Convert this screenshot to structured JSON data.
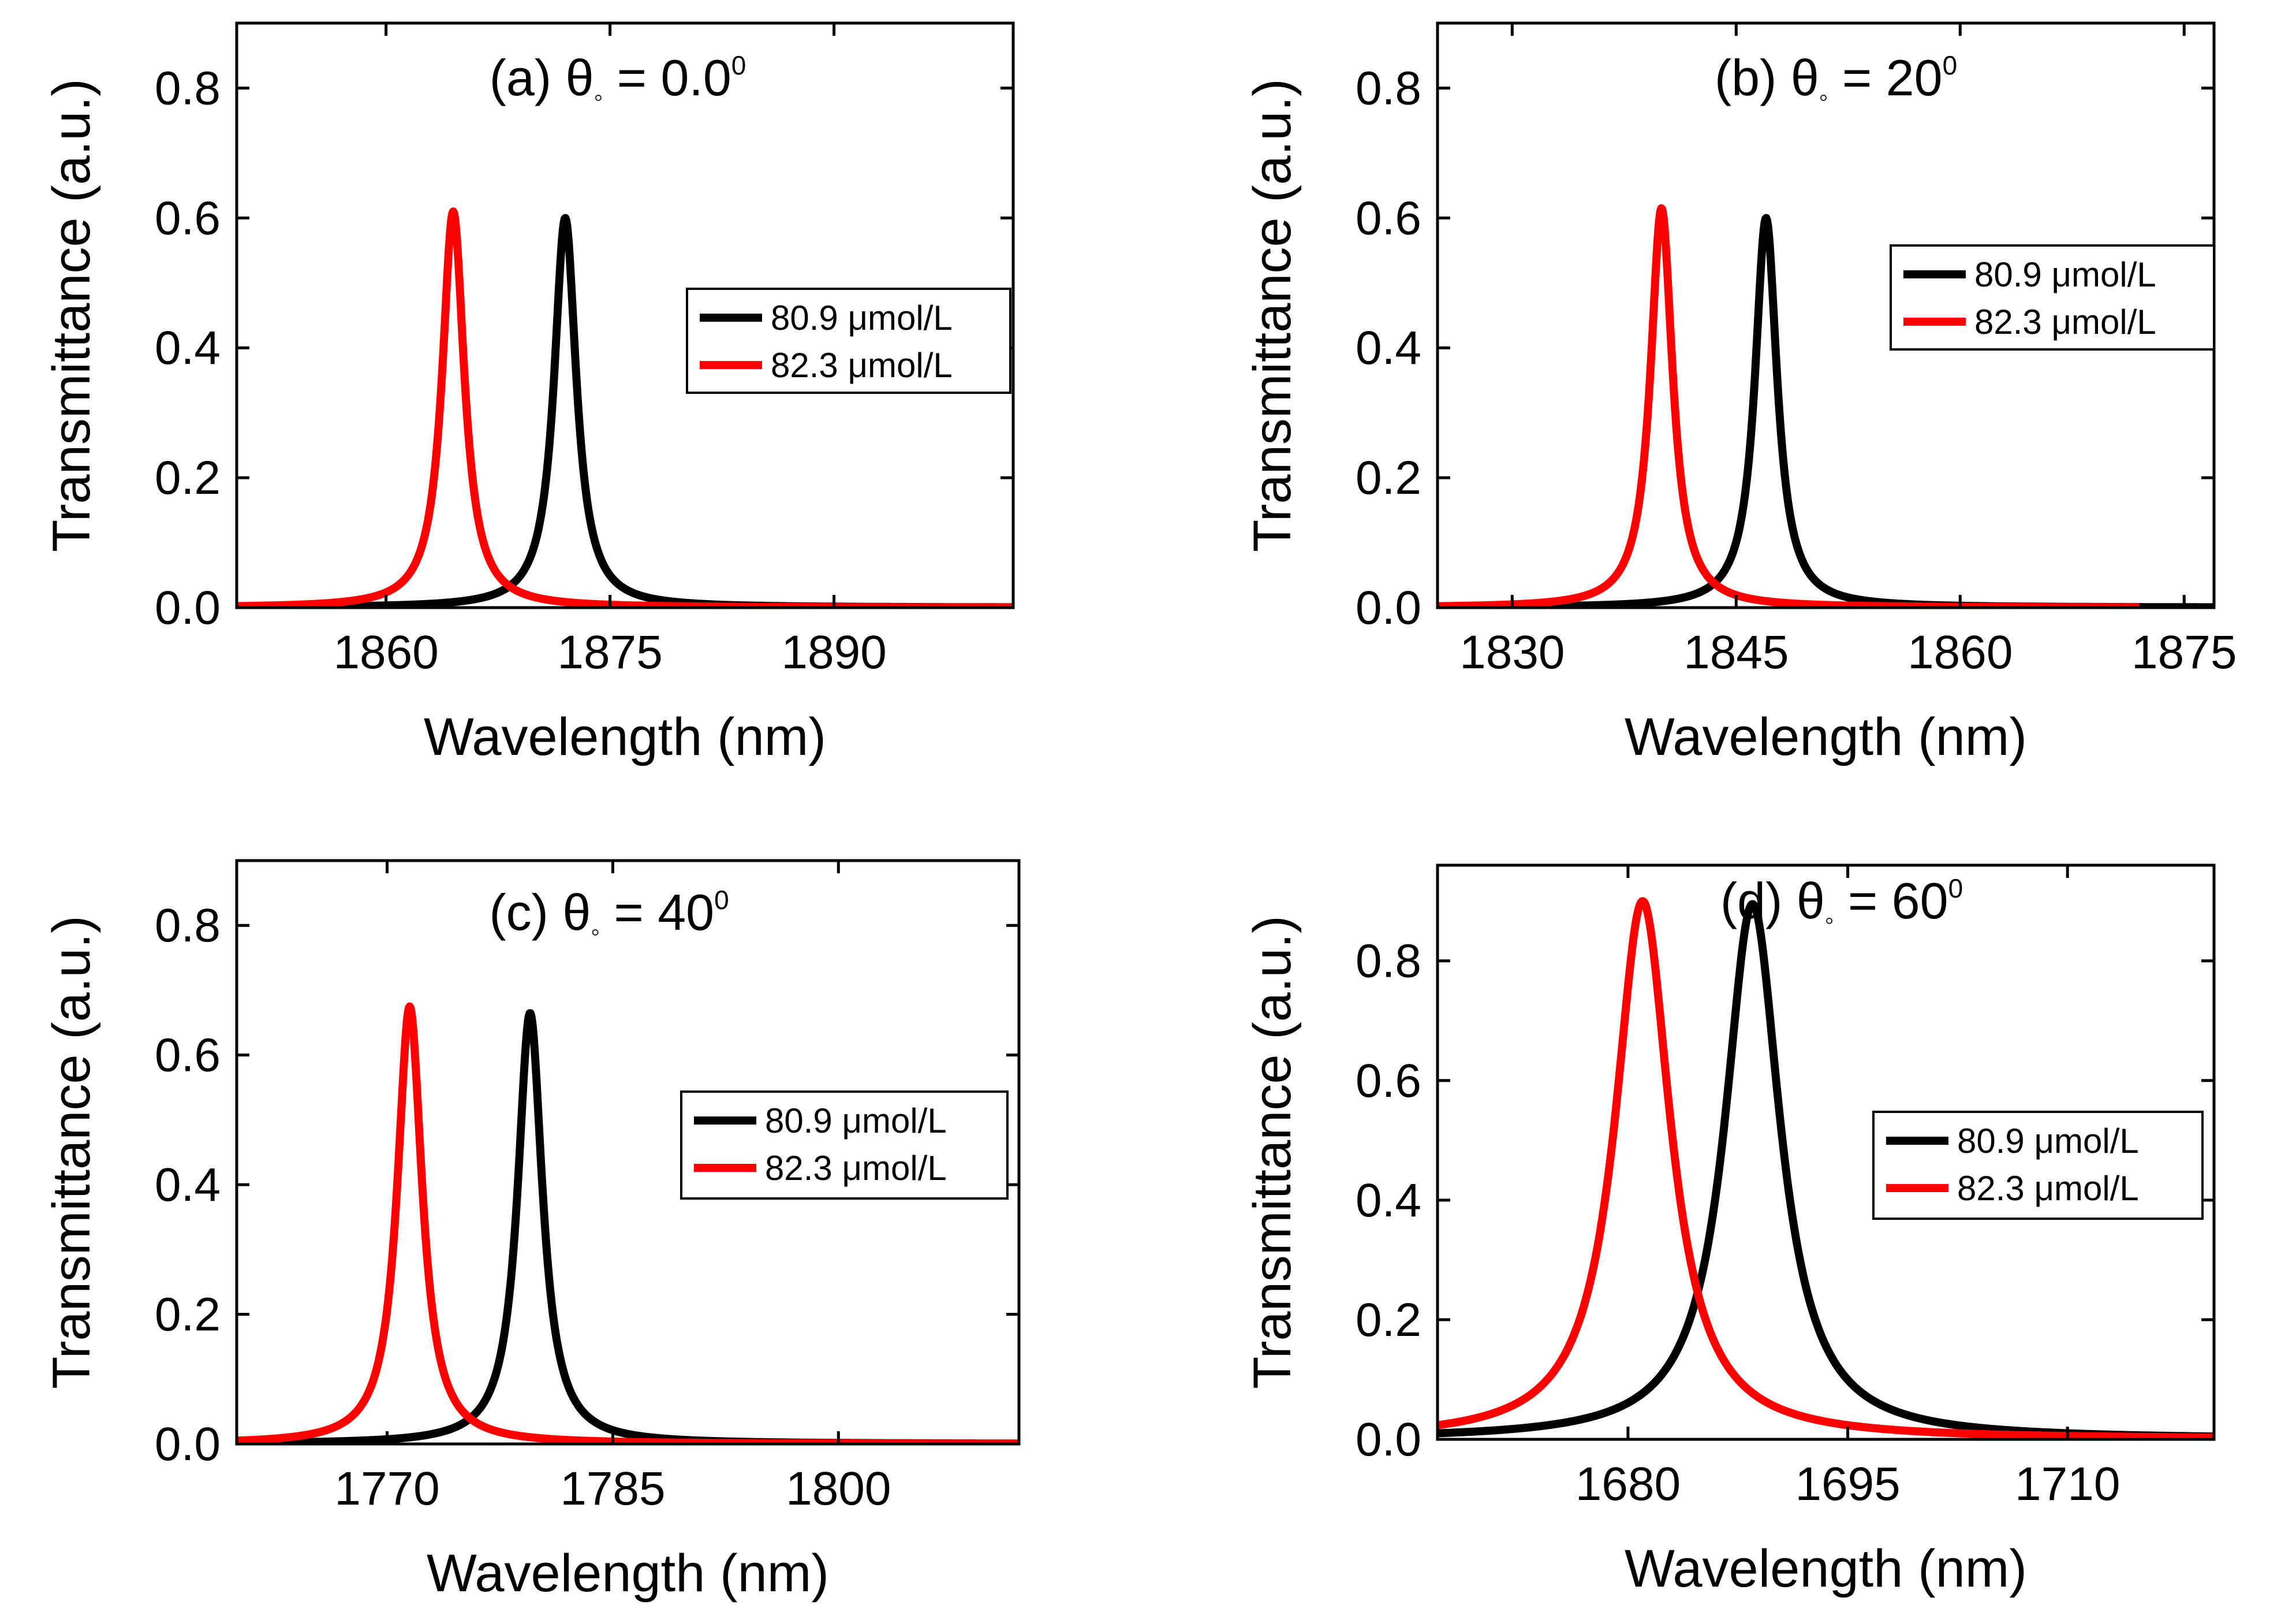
{
  "figure": {
    "colors": {
      "black_series": "#000000",
      "red_series": "#ff0000",
      "background": "#ffffff"
    }
  },
  "chart_data": [
    {
      "type": "line",
      "title": "(a) θ° = 0.0°",
      "title_parts": {
        "label": "(a) θ",
        "sub": "◦",
        "eq": " = 0.0",
        "sup": "0"
      },
      "xlabel": "Wavelength (nm)",
      "ylabel": "Transmittance (a.u.)",
      "xlim": [
        1850,
        1902
      ],
      "ylim": [
        0,
        0.9
      ],
      "xticks": [
        1860,
        1875,
        1890
      ],
      "xtick_labels": [
        "1860",
        "1875",
        "1890"
      ],
      "yticks": [
        0.0,
        0.2,
        0.4,
        0.6,
        0.8
      ],
      "ytick_labels": [
        "0.0",
        "0.2",
        "0.4",
        "0.6",
        "0.8"
      ],
      "legend": {
        "placement": "right-middle"
      },
      "series": [
        {
          "name": "80.9 μmol/L",
          "name_parts": [
            "80.9 ",
            "μmol/L"
          ],
          "color": "#000000",
          "peak_x": 1872.0,
          "peak_y": 0.6,
          "hwhm": 0.9,
          "x_range": [
            1850,
            1902
          ]
        },
        {
          "name": "82.3 μmol/L",
          "name_parts": [
            "82.3 ",
            "μmol/L"
          ],
          "color": "#ff0000",
          "peak_x": 1864.5,
          "peak_y": 0.61,
          "hwhm": 0.9,
          "x_range": [
            1850,
            1902
          ]
        }
      ]
    },
    {
      "type": "line",
      "title": "(b) θ° = 20°",
      "title_parts": {
        "label": "(b) θ",
        "sub": "◦",
        "eq": " = 20",
        "sup": "0"
      },
      "xlabel": "Wavelength (nm)",
      "ylabel": "Transmittance (a.u.)",
      "xlim": [
        1825,
        1877
      ],
      "ylim": [
        0,
        0.9
      ],
      "xticks": [
        1830,
        1845,
        1860,
        1875
      ],
      "xtick_labels": [
        "1830",
        "1845",
        "1860",
        "1875"
      ],
      "yticks": [
        0.0,
        0.2,
        0.4,
        0.6,
        0.8
      ],
      "ytick_labels": [
        "0.0",
        "0.2",
        "0.4",
        "0.6",
        "0.8"
      ],
      "legend": {
        "placement": "right-middle"
      },
      "series": [
        {
          "name": "80.9 μmol/L",
          "name_parts": [
            "80.9 ",
            "μmol/L"
          ],
          "color": "#000000",
          "peak_x": 1847.0,
          "peak_y": 0.6,
          "hwhm": 0.9,
          "x_range": [
            1825,
            1877
          ]
        },
        {
          "name": "82.3 μmol/L",
          "name_parts": [
            "82.3 ",
            "μmol/L"
          ],
          "color": "#ff0000",
          "peak_x": 1840.0,
          "peak_y": 0.615,
          "hwhm": 0.9,
          "x_range": [
            1825,
            1872
          ]
        }
      ]
    },
    {
      "type": "line",
      "title": "(c) θ° = 40°",
      "title_parts": {
        "label": "(c) θ",
        "sub": "◦",
        "eq": " = 40",
        "sup": "0"
      },
      "xlabel": "Wavelength (nm)",
      "ylabel": "Transmittance (a.u.)",
      "xlim": [
        1760,
        1812
      ],
      "ylim": [
        0,
        0.9
      ],
      "xticks": [
        1770,
        1785,
        1800
      ],
      "xtick_labels": [
        "1770",
        "1785",
        "1800"
      ],
      "yticks": [
        0.0,
        0.2,
        0.4,
        0.6,
        0.8
      ],
      "ytick_labels": [
        "0.0",
        "0.2",
        "0.4",
        "0.6",
        "0.8"
      ],
      "legend": {
        "placement": "right-middle"
      },
      "series": [
        {
          "name": "80.9 μmol/L",
          "name_parts": [
            "80.9 ",
            "μmol/L"
          ],
          "color": "#000000",
          "peak_x": 1779.5,
          "peak_y": 0.665,
          "hwhm": 1.0,
          "x_range": [
            1760,
            1812
          ]
        },
        {
          "name": "82.3 μmol/L",
          "name_parts": [
            "82.3 ",
            "μmol/L"
          ],
          "color": "#ff0000",
          "peak_x": 1771.5,
          "peak_y": 0.675,
          "hwhm": 1.0,
          "x_range": [
            1760,
            1812
          ]
        }
      ]
    },
    {
      "type": "line",
      "title": "(d) θ° = 60°",
      "title_parts": {
        "label": "(d) θ",
        "sub": "◦",
        "eq": " = 60",
        "sup": "0"
      },
      "xlabel": "Wavelength (nm)",
      "ylabel": "Transmittance (a.u.)",
      "xlim": [
        1667,
        1720
      ],
      "ylim": [
        0,
        0.96
      ],
      "xticks": [
        1680,
        1695,
        1710
      ],
      "xtick_labels": [
        "1680",
        "1695",
        "1710"
      ],
      "yticks": [
        0.0,
        0.2,
        0.4,
        0.6,
        0.8
      ],
      "ytick_labels": [
        "0.0",
        "0.2",
        "0.4",
        "0.6",
        "0.8"
      ],
      "legend": {
        "placement": "right-middle"
      },
      "series": [
        {
          "name": "80.9 μmol/L",
          "name_parts": [
            "80.9 ",
            "μmol/L"
          ],
          "color": "#000000",
          "peak_x": 1688.5,
          "peak_y": 0.895,
          "hwhm": 2.3,
          "x_range": [
            1667,
            1720
          ]
        },
        {
          "name": "82.3 μmol/L",
          "name_parts": [
            "82.3 ",
            "μmol/L"
          ],
          "color": "#ff0000",
          "peak_x": 1681.0,
          "peak_y": 0.9,
          "hwhm": 2.3,
          "x_range": [
            1667,
            1720
          ]
        }
      ]
    }
  ]
}
